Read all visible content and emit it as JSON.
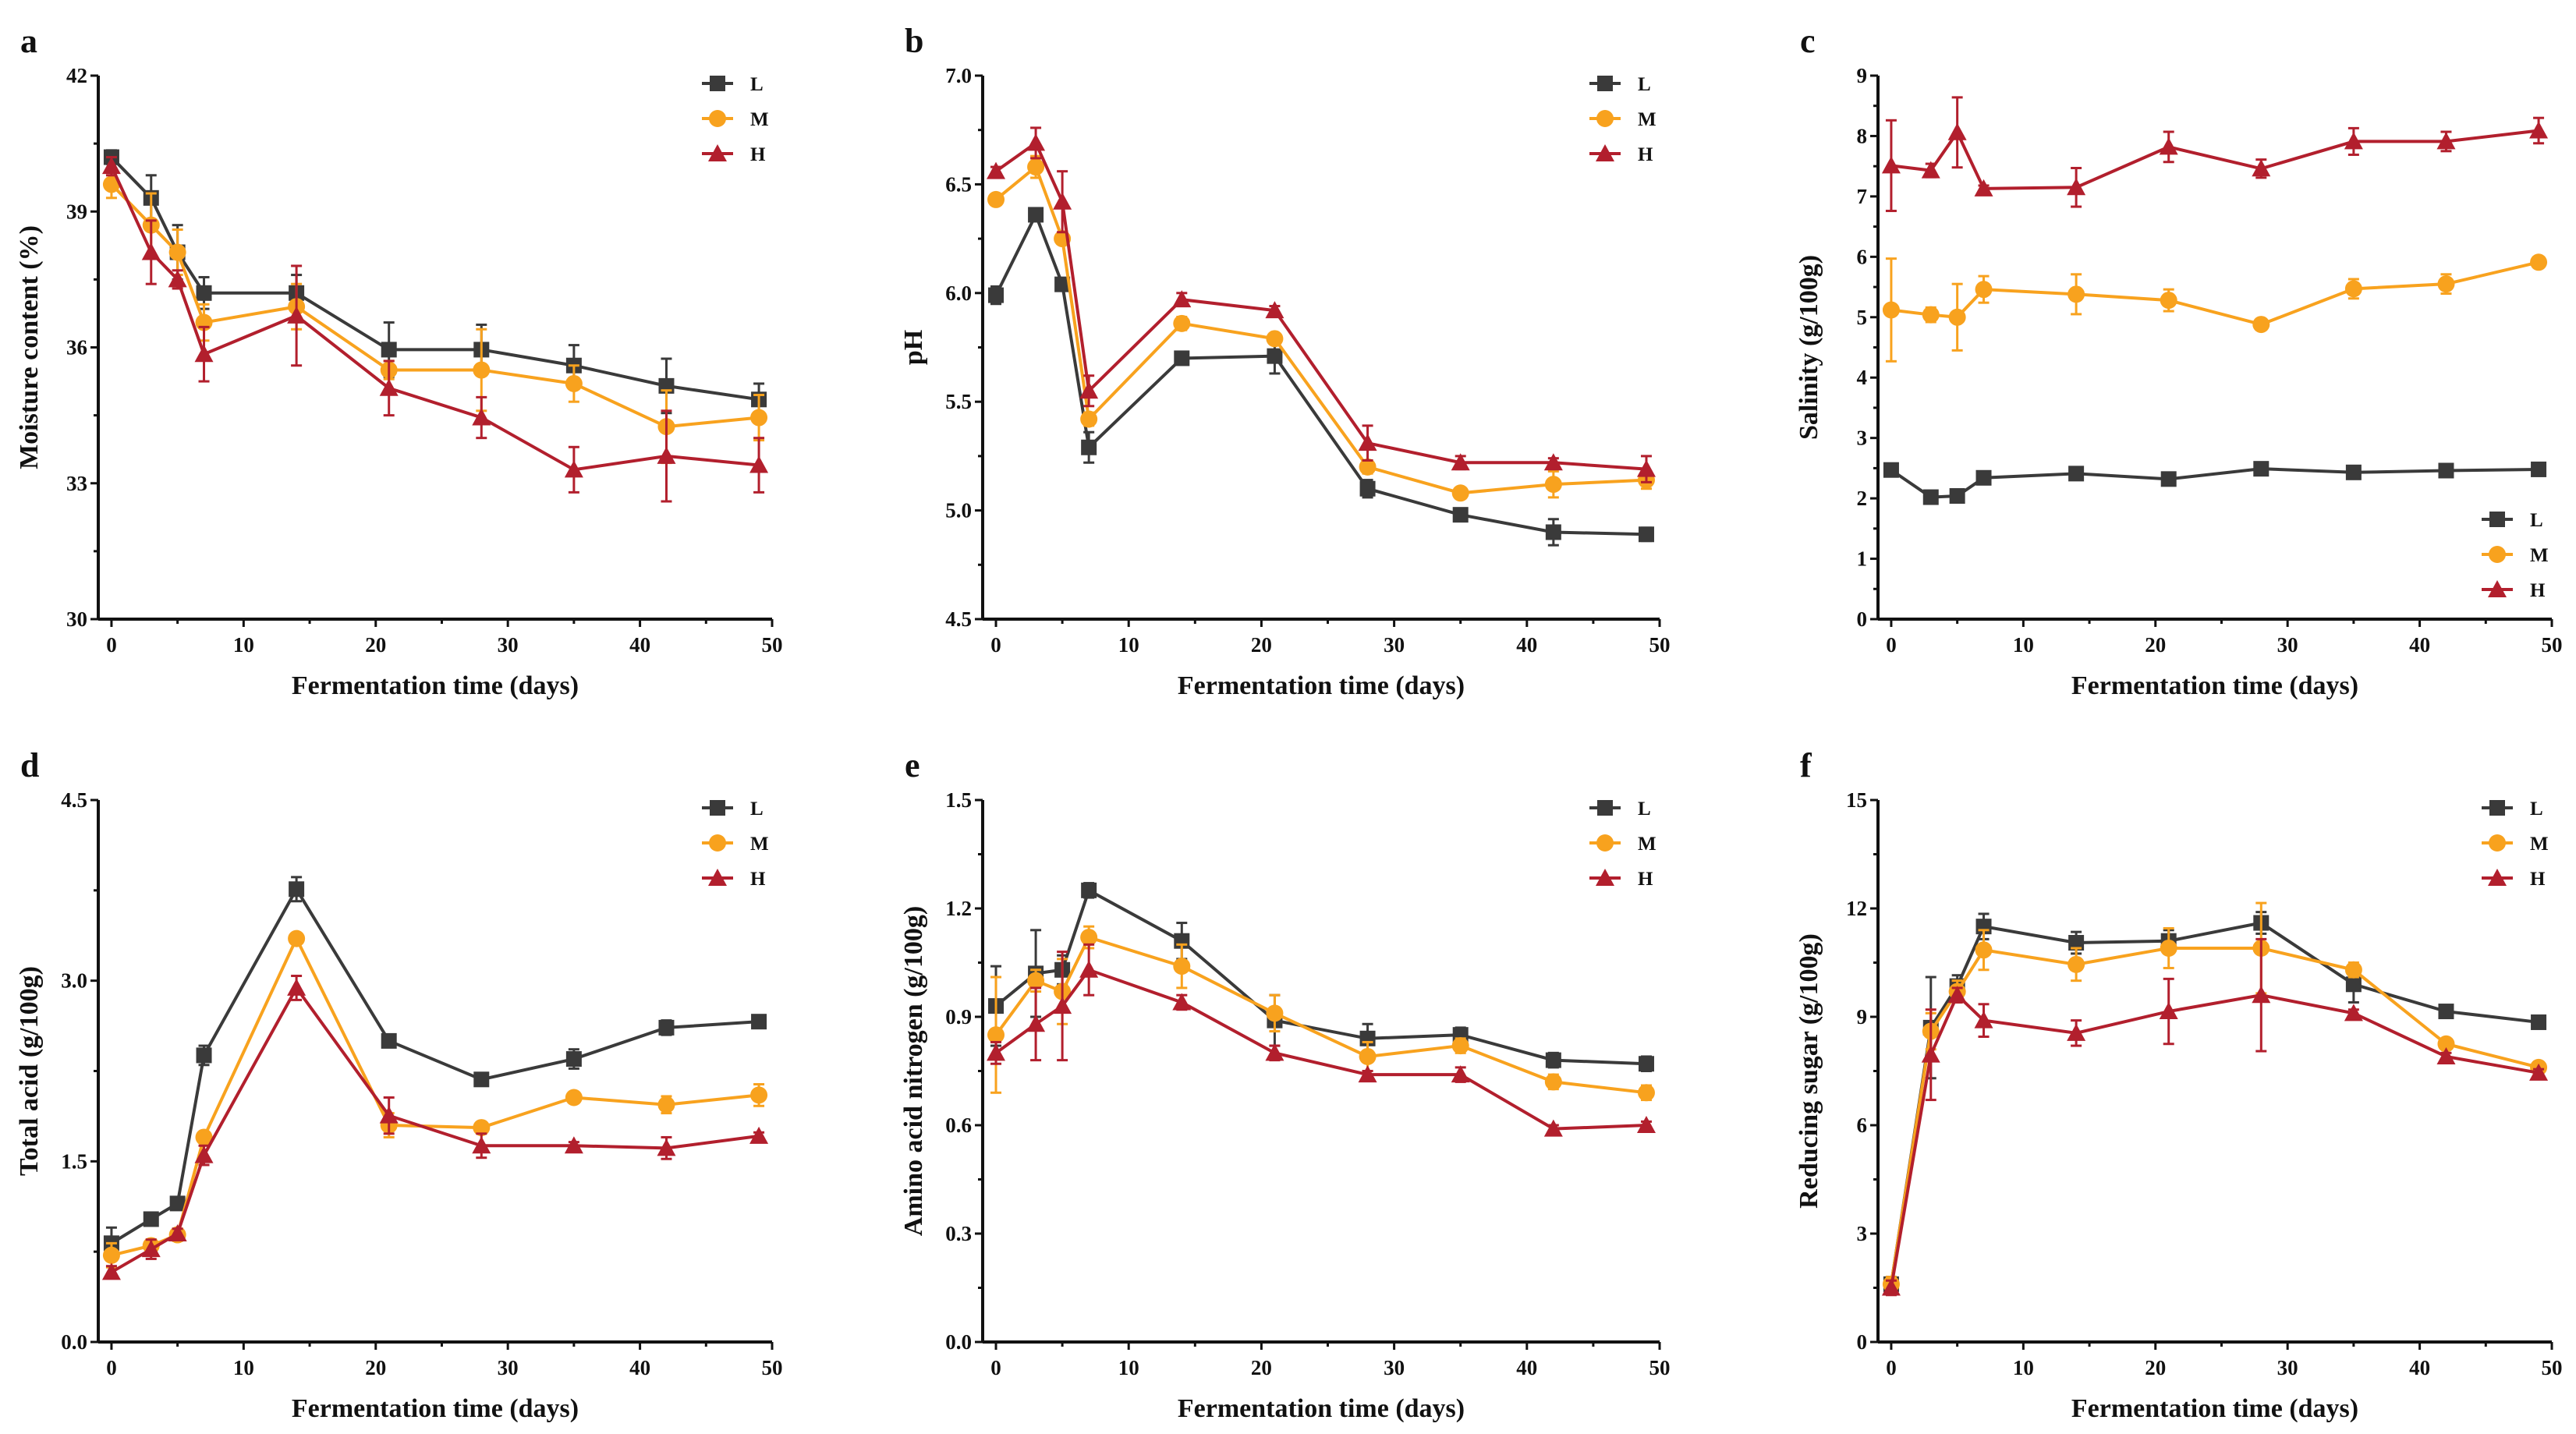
{
  "colors": {
    "L": "#3a3a3a",
    "M": "#f8a21e",
    "H": "#b21f2d"
  },
  "markers": {
    "L": "square",
    "M": "circle",
    "H": "triangle"
  },
  "chart_data": [
    {
      "panel": "a",
      "type": "line",
      "xlabel": "Fermentation time (days)",
      "ylabel": "Moisture content (%)",
      "xlim": [
        -1,
        50
      ],
      "xticks": [
        0,
        10,
        20,
        30,
        40,
        50
      ],
      "ylim": [
        30,
        42
      ],
      "yticks": [
        "30",
        "33",
        "36",
        "39",
        "42"
      ],
      "legend": "top-right",
      "grid": false,
      "x": [
        0,
        3,
        5,
        7,
        14,
        21,
        28,
        35,
        42,
        49
      ],
      "series": [
        {
          "name": "L",
          "values": [
            40.2,
            39.3,
            38.1,
            37.2,
            37.2,
            35.95,
            35.95,
            35.6,
            35.15,
            34.85
          ],
          "errors": [
            0.15,
            0.5,
            0.6,
            0.35,
            0.4,
            0.6,
            0.55,
            0.45,
            0.6,
            0.35
          ]
        },
        {
          "name": "M",
          "values": [
            39.6,
            38.7,
            38.1,
            36.55,
            36.9,
            35.5,
            35.5,
            35.2,
            34.25,
            34.45
          ],
          "errors": [
            0.3,
            0.7,
            0.5,
            0.4,
            0.5,
            0.2,
            0.9,
            0.4,
            0.8,
            0.5
          ]
        },
        {
          "name": "H",
          "values": [
            40.0,
            38.1,
            37.5,
            35.85,
            36.7,
            35.1,
            34.45,
            33.3,
            33.6,
            33.4
          ],
          "errors": [
            0.2,
            0.7,
            0.2,
            0.6,
            1.1,
            0.6,
            0.45,
            0.5,
            1.0,
            0.6
          ]
        }
      ]
    },
    {
      "panel": "b",
      "type": "line",
      "xlabel": "Fermentation time (days)",
      "ylabel": "pH",
      "xlim": [
        -1,
        50
      ],
      "xticks": [
        0,
        10,
        20,
        30,
        40,
        50
      ],
      "ylim": [
        4.5,
        7.0
      ],
      "yticks": [
        "4.5",
        "5.0",
        "5.5",
        "6.0",
        "6.5",
        "7.0"
      ],
      "legend": "top-right",
      "grid": false,
      "x": [
        0,
        3,
        5,
        7,
        14,
        21,
        28,
        35,
        42,
        49
      ],
      "series": [
        {
          "name": "L",
          "values": [
            5.99,
            6.36,
            6.04,
            5.29,
            5.7,
            5.71,
            5.1,
            4.98,
            4.9,
            4.89
          ],
          "errors": [
            0.04,
            0.02,
            0.02,
            0.07,
            0.02,
            0.08,
            0.04,
            0.02,
            0.06,
            0.03
          ]
        },
        {
          "name": "M",
          "values": [
            6.43,
            6.58,
            6.25,
            5.42,
            5.86,
            5.79,
            5.2,
            5.08,
            5.12,
            5.14
          ],
          "errors": [
            0.02,
            0.05,
            0.02,
            0.03,
            0.03,
            0.02,
            0.03,
            0.02,
            0.06,
            0.04
          ]
        },
        {
          "name": "H",
          "values": [
            6.56,
            6.69,
            6.42,
            5.55,
            5.97,
            5.92,
            5.31,
            5.22,
            5.22,
            5.19
          ],
          "errors": [
            0.02,
            0.07,
            0.14,
            0.07,
            0.03,
            0.02,
            0.08,
            0.03,
            0.02,
            0.06
          ]
        }
      ]
    },
    {
      "panel": "c",
      "type": "line",
      "xlabel": "Fermentation time (days)",
      "ylabel": "Salinity (g/100g)",
      "xlim": [
        -1,
        50
      ],
      "xticks": [
        0,
        10,
        20,
        30,
        40,
        50
      ],
      "ylim": [
        0,
        9
      ],
      "yticks": [
        "0",
        "1",
        "2",
        "3",
        "4",
        "5",
        "6",
        "7",
        "8",
        "9"
      ],
      "legend": "bottom-right",
      "grid": false,
      "x": [
        0,
        3,
        5,
        7,
        14,
        21,
        28,
        35,
        42,
        49
      ],
      "series": [
        {
          "name": "L",
          "values": [
            2.47,
            2.02,
            2.04,
            2.34,
            2.41,
            2.32,
            2.49,
            2.43,
            2.46,
            2.48
          ],
          "errors": [
            0.05,
            0.04,
            0.04,
            0.05,
            0.05,
            0.07,
            0.05,
            0.04,
            0.05,
            0.06
          ]
        },
        {
          "name": "M",
          "values": [
            5.12,
            5.04,
            5.0,
            5.46,
            5.38,
            5.28,
            4.88,
            5.47,
            5.55,
            5.91
          ],
          "errors": [
            0.85,
            0.12,
            0.55,
            0.22,
            0.33,
            0.18,
            0.08,
            0.16,
            0.16,
            0.08
          ]
        },
        {
          "name": "H",
          "values": [
            7.51,
            7.43,
            8.06,
            7.13,
            7.15,
            7.82,
            7.46,
            7.91,
            7.91,
            8.09
          ],
          "errors": [
            0.75,
            0.11,
            0.58,
            0.05,
            0.32,
            0.25,
            0.15,
            0.22,
            0.16,
            0.21
          ]
        }
      ]
    },
    {
      "panel": "d",
      "type": "line",
      "xlabel": "Fermentation time (days)",
      "ylabel": "Total acid (g/100g)",
      "xlim": [
        -1,
        50
      ],
      "xticks": [
        0,
        10,
        20,
        30,
        40,
        50
      ],
      "ylim": [
        0,
        4.5
      ],
      "yticks": [
        "0.0",
        "1.5",
        "3.0",
        "4.5"
      ],
      "legend": "top-right",
      "grid": false,
      "x": [
        0,
        3,
        5,
        7,
        14,
        21,
        28,
        35,
        42,
        49
      ],
      "series": [
        {
          "name": "L",
          "values": [
            0.82,
            1.02,
            1.15,
            2.38,
            3.76,
            2.5,
            2.18,
            2.35,
            2.61,
            2.66
          ],
          "errors": [
            0.13,
            0.05,
            0.05,
            0.08,
            0.1,
            0.03,
            0.04,
            0.08,
            0.06,
            0.03
          ]
        },
        {
          "name": "M",
          "values": [
            0.72,
            0.8,
            0.89,
            1.7,
            3.35,
            1.8,
            1.78,
            2.03,
            1.97,
            2.05
          ],
          "errors": [
            0.1,
            0.05,
            0.05,
            0.04,
            0.03,
            0.1,
            0.03,
            0.03,
            0.07,
            0.09
          ]
        },
        {
          "name": "H",
          "values": [
            0.58,
            0.77,
            0.9,
            1.55,
            2.94,
            1.88,
            1.63,
            1.63,
            1.61,
            1.71
          ],
          "errors": [
            0.05,
            0.08,
            0.04,
            0.08,
            0.1,
            0.15,
            0.1,
            0.03,
            0.09,
            0.03
          ]
        }
      ]
    },
    {
      "panel": "e",
      "type": "line",
      "xlabel": "Fermentation time (days)",
      "ylabel": "Amino acid nitrogen (g/100g)",
      "xlim": [
        -1,
        50
      ],
      "xticks": [
        0,
        10,
        20,
        30,
        40,
        50
      ],
      "ylim": [
        0,
        1.5
      ],
      "yticks": [
        "0.0",
        "0.3",
        "0.6",
        "0.9",
        "1.2",
        "1.5"
      ],
      "legend": "top-right",
      "grid": false,
      "x": [
        0,
        3,
        5,
        7,
        14,
        21,
        28,
        35,
        42,
        49
      ],
      "series": [
        {
          "name": "L",
          "values": [
            0.93,
            1.02,
            1.03,
            1.25,
            1.11,
            0.89,
            0.84,
            0.85,
            0.78,
            0.77
          ],
          "errors": [
            0.11,
            0.12,
            0.04,
            0.02,
            0.05,
            0.07,
            0.04,
            0.02,
            0.02,
            0.02
          ]
        },
        {
          "name": "M",
          "values": [
            0.85,
            1.0,
            0.97,
            1.12,
            1.04,
            0.91,
            0.79,
            0.82,
            0.72,
            0.69
          ],
          "errors": [
            0.16,
            0.03,
            0.09,
            0.03,
            0.06,
            0.05,
            0.04,
            0.02,
            0.02,
            0.02
          ]
        },
        {
          "name": "H",
          "values": [
            0.8,
            0.88,
            0.93,
            1.03,
            0.94,
            0.8,
            0.74,
            0.74,
            0.59,
            0.6
          ],
          "errors": [
            0.03,
            0.1,
            0.15,
            0.07,
            0.02,
            0.02,
            0.01,
            0.02,
            0.01,
            0.01
          ]
        }
      ]
    },
    {
      "panel": "f",
      "type": "line",
      "xlabel": "Fermentation time (days)",
      "ylabel": "Reducing sugar (g/100g)",
      "xlim": [
        -1,
        50
      ],
      "xticks": [
        0,
        10,
        20,
        30,
        40,
        50
      ],
      "ylim": [
        0,
        15
      ],
      "yticks": [
        "0",
        "3",
        "6",
        "9",
        "12",
        "15"
      ],
      "legend": "top-right",
      "grid": false,
      "x": [
        0,
        3,
        5,
        7,
        14,
        21,
        28,
        35,
        42,
        49
      ],
      "series": [
        {
          "name": "L",
          "values": [
            1.6,
            8.7,
            9.85,
            11.5,
            11.05,
            11.1,
            11.6,
            9.9,
            9.15,
            8.85
          ],
          "errors": [
            0.2,
            1.4,
            0.3,
            0.35,
            0.3,
            0.3,
            0.3,
            0.5,
            0.1,
            0.1
          ]
        },
        {
          "name": "M",
          "values": [
            1.6,
            8.6,
            9.7,
            10.85,
            10.45,
            10.9,
            10.9,
            10.3,
            8.25,
            7.6
          ],
          "errors": [
            0.2,
            0.5,
            0.3,
            0.55,
            0.45,
            0.55,
            1.25,
            0.2,
            0.1,
            0.1
          ]
        },
        {
          "name": "H",
          "values": [
            1.5,
            7.95,
            9.6,
            8.9,
            8.55,
            9.15,
            9.6,
            9.1,
            7.9,
            7.45
          ],
          "errors": [
            0.2,
            1.25,
            0.2,
            0.45,
            0.35,
            0.9,
            1.55,
            0.1,
            0.1,
            0.1
          ]
        }
      ]
    }
  ]
}
